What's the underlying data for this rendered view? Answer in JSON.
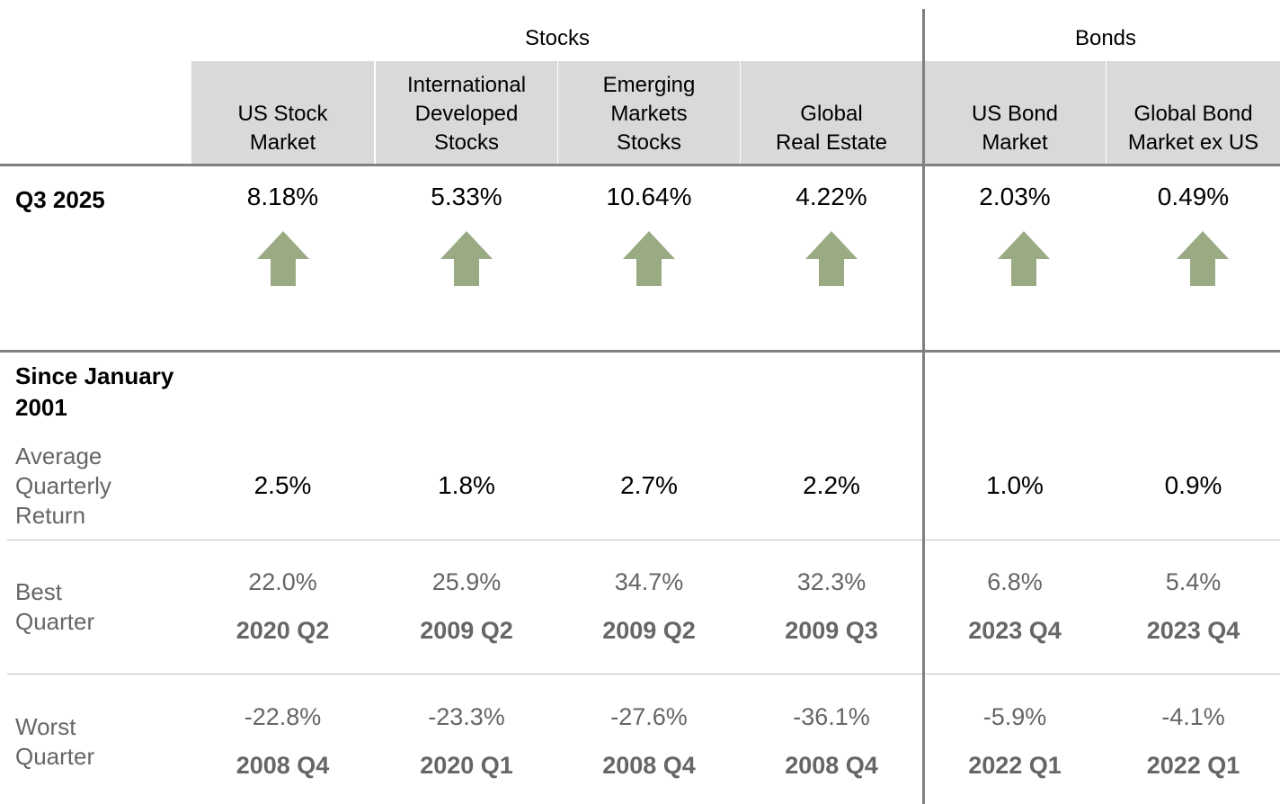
{
  "groups": [
    "Stocks",
    "Bonds"
  ],
  "columns": [
    [
      "US Stock",
      "Market"
    ],
    [
      "International",
      "Developed",
      "Stocks"
    ],
    [
      "Emerging",
      "Markets",
      "Stocks"
    ],
    [
      "Global",
      "Real Estate"
    ],
    [
      "US Bond",
      "Market"
    ],
    [
      "Global Bond",
      "Market ex US"
    ]
  ],
  "quarter": {
    "label": "Q3 2025",
    "values": [
      "8.18%",
      "5.33%",
      "10.64%",
      "4.22%",
      "2.03%",
      "0.49%"
    ]
  },
  "since": {
    "label": [
      "Since January",
      "2001"
    ],
    "average": {
      "label": [
        "Average",
        "Quarterly",
        "Return"
      ],
      "values": [
        "2.5%",
        "1.8%",
        "2.7%",
        "2.2%",
        "1.0%",
        "0.9%"
      ]
    },
    "best": {
      "label": [
        "Best",
        "Quarter"
      ],
      "values": [
        "22.0%",
        "25.9%",
        "34.7%",
        "32.3%",
        "6.8%",
        "5.4%"
      ],
      "periods": [
        "2020 Q2",
        "2009 Q2",
        "2009 Q2",
        "2009 Q3",
        "2023 Q4",
        "2023 Q4"
      ]
    },
    "worst": {
      "label": [
        "Worst",
        "Quarter"
      ],
      "values": [
        "-22.8%",
        "-23.3%",
        "-27.6%",
        "-36.1%",
        "-5.9%",
        "-4.1%"
      ],
      "periods": [
        "2008 Q4",
        "2020 Q1",
        "2008 Q4",
        "2008 Q4",
        "2022 Q1",
        "2022 Q1"
      ]
    }
  }
}
